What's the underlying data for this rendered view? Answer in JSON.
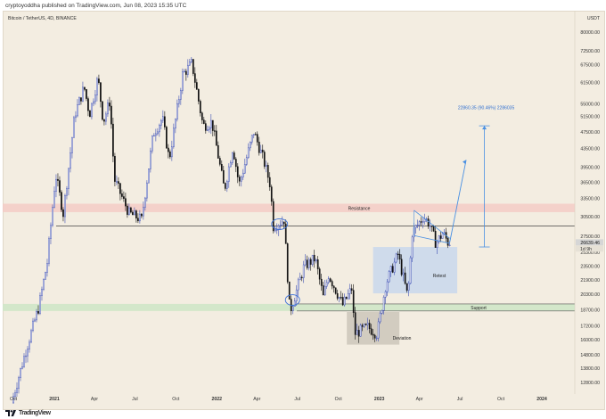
{
  "header": {
    "publisher": "cryptoyoddha published on TradingView.com, Jun 08, 2023 15:35 UTC"
  },
  "footer": {
    "brand": "TradingView",
    "logo_icon": "tradingview-logo-icon"
  },
  "chart_data": {
    "type": "candlestick",
    "symbol_title": "Bitcoin / TetherUS, 4D, BINANCE",
    "currency": "USDT",
    "y_ticks": [
      12800,
      13800,
      14800,
      16000,
      17200,
      18700,
      20300,
      21900,
      23500,
      25300,
      27500,
      30500,
      33500,
      36500,
      39500,
      43500,
      47500,
      51500,
      55000,
      61500,
      67500,
      72500,
      80000
    ],
    "y_tick_labels": [
      "12800.00",
      "13800.00",
      "14800.00",
      "16000.00",
      "17200.00",
      "18700.00",
      "20300.00",
      "21900.00",
      "23500.00",
      "25300.00",
      "27500.00",
      "30500.00",
      "33500.00",
      "36500.00",
      "39500.00",
      "43500.00",
      "47500.00",
      "51500.00",
      "55000.00",
      "61500.00",
      "67500.00",
      "72500.00",
      "80000.00"
    ],
    "y_scale": "log",
    "x_ticks": [
      "Oct",
      "2021",
      "Apr",
      "Jul",
      "Oct",
      "2022",
      "Apr",
      "Jul",
      "Oct",
      "2023",
      "Apr",
      "Jul",
      "Oct",
      "2024"
    ],
    "price_path": [
      [
        "2020-10-01",
        11500
      ],
      [
        "2020-11-01",
        15000
      ],
      [
        "2020-12-01",
        19000
      ],
      [
        "2020-12-20",
        24000
      ],
      [
        "2021-01-08",
        38000
      ],
      [
        "2021-01-25",
        31000
      ],
      [
        "2021-02-20",
        52000
      ],
      [
        "2021-03-13",
        60000
      ],
      [
        "2021-03-25",
        52000
      ],
      [
        "2021-04-13",
        63000
      ],
      [
        "2021-04-25",
        50000
      ],
      [
        "2021-05-10",
        56000
      ],
      [
        "2021-05-20",
        37000
      ],
      [
        "2021-06-10",
        33000
      ],
      [
        "2021-06-22",
        31000
      ],
      [
        "2021-07-20",
        30000
      ],
      [
        "2021-08-15",
        47000
      ],
      [
        "2021-09-05",
        51000
      ],
      [
        "2021-09-20",
        41000
      ],
      [
        "2021-10-20",
        64000
      ],
      [
        "2021-11-10",
        68000
      ],
      [
        "2021-12-05",
        49000
      ],
      [
        "2021-12-25",
        50000
      ],
      [
        "2022-01-22",
        35000
      ],
      [
        "2022-02-10",
        44000
      ],
      [
        "2022-02-24",
        36000
      ],
      [
        "2022-03-29",
        47500
      ],
      [
        "2022-04-20",
        41000
      ],
      [
        "2022-05-05",
        36000
      ],
      [
        "2022-05-12",
        29000
      ],
      [
        "2022-06-05",
        30000
      ],
      [
        "2022-06-14",
        21500
      ],
      [
        "2022-06-18",
        18500
      ],
      [
        "2022-07-20",
        23500
      ],
      [
        "2022-08-14",
        24500
      ],
      [
        "2022-09-01",
        20000
      ],
      [
        "2022-09-13",
        22500
      ],
      [
        "2022-10-15",
        19200
      ],
      [
        "2022-11-05",
        21000
      ],
      [
        "2022-11-10",
        16500
      ],
      [
        "2022-12-10",
        17100
      ],
      [
        "2022-12-31",
        16500
      ],
      [
        "2023-01-20",
        21500
      ],
      [
        "2023-02-16",
        25000
      ],
      [
        "2023-03-10",
        20000
      ],
      [
        "2023-03-20",
        28000
      ],
      [
        "2023-04-14",
        30500
      ],
      [
        "2023-04-28",
        29300
      ],
      [
        "2023-05-12",
        26500
      ],
      [
        "2023-05-28",
        28000
      ],
      [
        "2023-06-08",
        26640
      ]
    ],
    "last_price": "26639.46",
    "last_countdown": "1d 9h",
    "zones": [
      {
        "label": "Resistance",
        "low": 31200,
        "high": 32600
      },
      {
        "label": "Support",
        "low": 18600,
        "high": 19300
      },
      {
        "label": "Retest",
        "from": "2023-01-01",
        "to": "2023-06-15",
        "low": 20400,
        "high": 26000
      },
      {
        "label": "Deviation",
        "from": "2022-11-01",
        "to": "2023-02-15",
        "low": 15600,
        "high": 18500
      }
    ],
    "horizontal_line": 29000,
    "measure_label": "22860.35 (90.46%) 2286035",
    "colors": {
      "up": "#3f51b5",
      "down": "#111111",
      "resistance": "#f4c9c4",
      "support": "#cfe6c8",
      "retest": "#c5d6ee",
      "deviation": "#c9c3b8",
      "projection": "#4a90e2",
      "price_badge": "#d6d6d6"
    }
  }
}
